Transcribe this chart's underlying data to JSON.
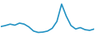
{
  "x": [
    0,
    1,
    2,
    3,
    4,
    5,
    6,
    7,
    8,
    9,
    10,
    11,
    12,
    13,
    14,
    15,
    16,
    17,
    18,
    19,
    20
  ],
  "y": [
    2.5,
    2.8,
    3.2,
    2.9,
    3.5,
    3.2,
    2.4,
    1.2,
    0.8,
    0.9,
    1.2,
    2.0,
    4.0,
    9.0,
    5.5,
    2.8,
    1.8,
    2.2,
    1.6,
    1.4,
    1.8
  ],
  "line_color": "#2292c3",
  "linewidth": 1.2,
  "background_color": "#ffffff",
  "ylim": [
    0,
    10
  ],
  "xlim": [
    0,
    20
  ]
}
